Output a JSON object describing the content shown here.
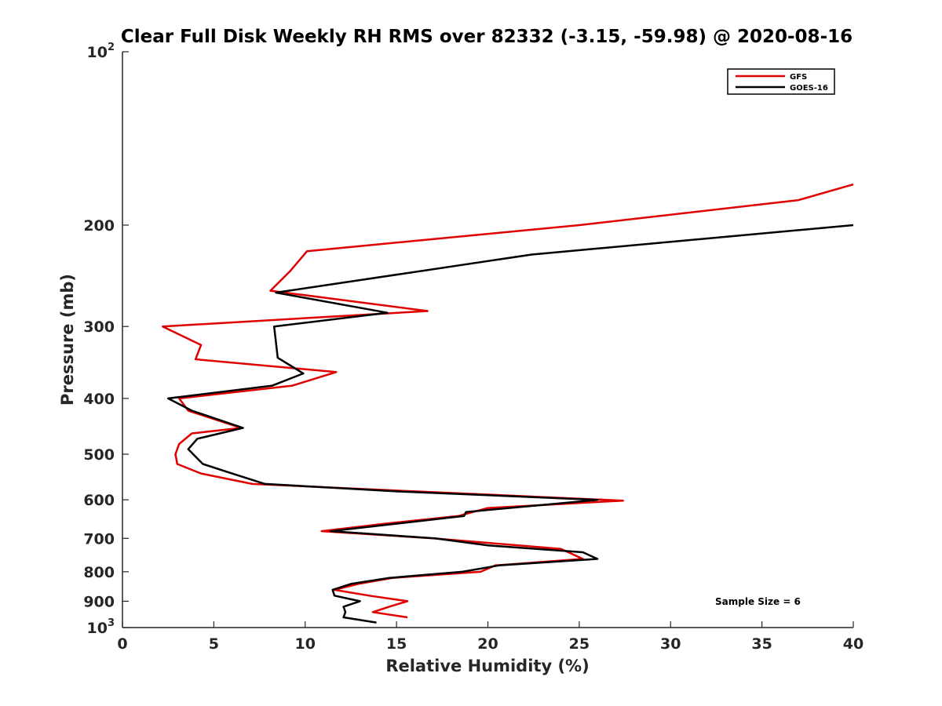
{
  "chart_data": {
    "type": "line",
    "title": "Clear Full Disk Weekly RH RMS over 82332 (-3.15, -59.98) @ 2020-08-16",
    "xlabel": "Relative Humidity (%)",
    "ylabel": "Pressure (mb)",
    "xlim": [
      0,
      40
    ],
    "ylim": [
      100,
      1000
    ],
    "y_scale": "log",
    "y_reversed": true,
    "grid": false,
    "legend_position": "top-right",
    "x_ticks": [
      "0",
      "5",
      "10",
      "15",
      "20",
      "25",
      "30",
      "35",
      "40"
    ],
    "y_ticks": [
      {
        "value": 100,
        "base": "10",
        "exp": "2"
      },
      {
        "value": 200,
        "label": "200"
      },
      {
        "value": 300,
        "label": "300"
      },
      {
        "value": 400,
        "label": "400"
      },
      {
        "value": 500,
        "label": "500"
      },
      {
        "value": 600,
        "label": "600"
      },
      {
        "value": 700,
        "label": "700"
      },
      {
        "value": 800,
        "label": "800"
      },
      {
        "value": 900,
        "label": "900"
      },
      {
        "value": 1000,
        "base": "10",
        "exp": "3"
      }
    ],
    "annotation": "Sample Size = 6",
    "series": [
      {
        "name": "GFS",
        "color": "#e00000",
        "points": [
          [
            40.0,
            170
          ],
          [
            37.0,
            181
          ],
          [
            25.0,
            200
          ],
          [
            10.1,
            222
          ],
          [
            9.2,
            240
          ],
          [
            8.1,
            260
          ],
          [
            16.7,
            282
          ],
          [
            2.2,
            300
          ],
          [
            4.3,
            323
          ],
          [
            4.0,
            342
          ],
          [
            11.7,
            360
          ],
          [
            9.3,
            380
          ],
          [
            3.1,
            400
          ],
          [
            3.6,
            420
          ],
          [
            6.5,
            450
          ],
          [
            3.8,
            460
          ],
          [
            3.1,
            480
          ],
          [
            2.9,
            500
          ],
          [
            3.0,
            520
          ],
          [
            4.3,
            540
          ],
          [
            7.1,
            563
          ],
          [
            16.0,
            580
          ],
          [
            27.4,
            602
          ],
          [
            20.0,
            620
          ],
          [
            18.4,
            640
          ],
          [
            14.4,
            660
          ],
          [
            10.9,
            680
          ],
          [
            17.0,
            700
          ],
          [
            24.0,
            730
          ],
          [
            25.2,
            760
          ],
          [
            20.4,
            780
          ],
          [
            19.6,
            800
          ],
          [
            14.8,
            820
          ],
          [
            12.9,
            840
          ],
          [
            11.6,
            860
          ],
          [
            13.5,
            880
          ],
          [
            15.6,
            900
          ],
          [
            14.6,
            920
          ],
          [
            13.7,
            940
          ],
          [
            15.6,
            960
          ]
        ]
      },
      {
        "name": "GOES-16",
        "color": "#000000",
        "points": [
          [
            40.0,
            200
          ],
          [
            22.4,
            225
          ],
          [
            8.4,
            262
          ],
          [
            14.5,
            284
          ],
          [
            8.3,
            300
          ],
          [
            8.5,
            340
          ],
          [
            9.9,
            362
          ],
          [
            8.2,
            380
          ],
          [
            2.5,
            400
          ],
          [
            3.8,
            420
          ],
          [
            6.6,
            450
          ],
          [
            4.1,
            470
          ],
          [
            3.6,
            490
          ],
          [
            4.4,
            520
          ],
          [
            6.0,
            540
          ],
          [
            7.8,
            563
          ],
          [
            15.0,
            580
          ],
          [
            26.0,
            600
          ],
          [
            18.8,
            630
          ],
          [
            18.7,
            640
          ],
          [
            11.4,
            680
          ],
          [
            17.1,
            700
          ],
          [
            20.0,
            720
          ],
          [
            25.2,
            740
          ],
          [
            26.0,
            760
          ],
          [
            20.6,
            780
          ],
          [
            18.6,
            800
          ],
          [
            14.6,
            820
          ],
          [
            12.5,
            840
          ],
          [
            11.5,
            860
          ],
          [
            11.6,
            880
          ],
          [
            13.0,
            900
          ],
          [
            12.1,
            920
          ],
          [
            12.2,
            940
          ],
          [
            12.1,
            960
          ],
          [
            13.9,
            980
          ]
        ]
      }
    ]
  }
}
